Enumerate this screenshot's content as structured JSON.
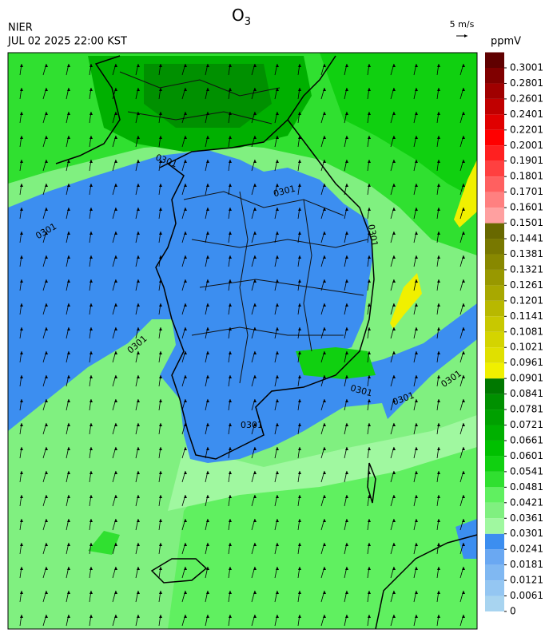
{
  "header": {
    "agency": "NIER",
    "timestamp": "JUL 02 2025 22:00 KST",
    "title": {
      "text": "O",
      "subscript": "3"
    },
    "wind_reference": "5 m/s"
  },
  "colorbar": {
    "unit": "ppmV",
    "levels": [
      0,
      0.0061,
      0.0121,
      0.0181,
      0.0241,
      0.0301,
      0.0361,
      0.0421,
      0.0481,
      0.0541,
      0.0601,
      0.0661,
      0.0721,
      0.0781,
      0.0841,
      0.0901,
      0.0961,
      0.1021,
      0.1081,
      0.1141,
      0.1201,
      0.1261,
      0.1321,
      0.1381,
      0.1441,
      0.1501,
      0.1601,
      0.1701,
      0.1801,
      0.1901,
      0.2001,
      0.2201,
      0.2401,
      0.2601,
      0.2801,
      0.3001
    ],
    "colors": [
      "#a8d4f0",
      "#94c6f2",
      "#80b8f2",
      "#6aa8f2",
      "#3c8ef0",
      "#a0f8a0",
      "#80f080",
      "#60f060",
      "#30e030",
      "#10d010",
      "#00c000",
      "#00b000",
      "#00a000",
      "#009000",
      "#007800",
      "#f0f000",
      "#e0e000",
      "#d4d400",
      "#c8c800",
      "#b8b800",
      "#a8a800",
      "#989800",
      "#888800",
      "#787800",
      "#686800",
      "#ffa0a0",
      "#ff8080",
      "#ff6060",
      "#ff4040",
      "#ff2020",
      "#ff0000",
      "#e00000",
      "#c00000",
      "#a00000",
      "#800000",
      "#600000"
    ]
  },
  "map": {
    "contour_labels": [
      "0301",
      "0301",
      "0301",
      "0301",
      "0301",
      "0301",
      "0301",
      "0301",
      "0301"
    ]
  }
}
